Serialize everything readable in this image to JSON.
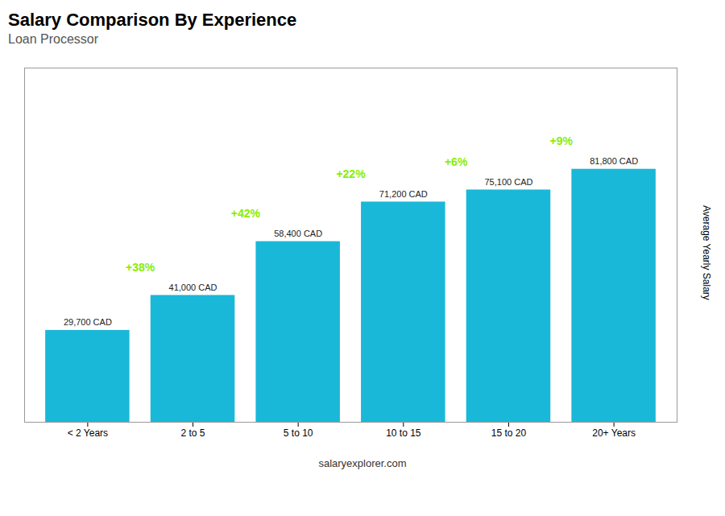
{
  "chart_data": {
    "type": "bar",
    "title": "Salary Comparison By Experience",
    "subtitle": "Loan Processor",
    "categories": [
      "< 2 Years",
      "2 to 5",
      "5 to 10",
      "10 to 15",
      "15 to 20",
      "20+ Years"
    ],
    "values": [
      29700,
      41000,
      58400,
      71200,
      75100,
      81800
    ],
    "value_labels": [
      "29,700 CAD",
      "41,000 CAD",
      "58,400 CAD",
      "71,200 CAD",
      "75,100 CAD",
      "81,800 CAD"
    ],
    "data_labels": true,
    "color": "#1ab8d8",
    "ylabel": "Average Yearly Salary",
    "ylim": [
      0,
      114520
    ],
    "tick_labels": "x",
    "annotations": [
      {
        "text": "+38%",
        "color": "#88ee00"
      },
      {
        "text": "+42%",
        "color": "#88ee00"
      },
      {
        "text": "+22%",
        "color": "#88ee00"
      },
      {
        "text": "+6%",
        "color": "#88ee00"
      },
      {
        "text": "+9%",
        "color": "#88ee00"
      }
    ],
    "caption": "salaryexplorer.com"
  }
}
